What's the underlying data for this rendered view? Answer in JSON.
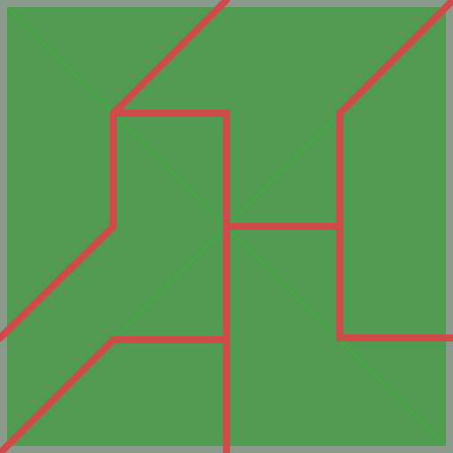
{
  "board": {
    "colors": {
      "frame": "#8a9a8a",
      "tile": "#529a52",
      "guide": "#3fae3f",
      "path": "#cf4a4a"
    },
    "grid": {
      "cols": 4,
      "rows": 4
    }
  }
}
